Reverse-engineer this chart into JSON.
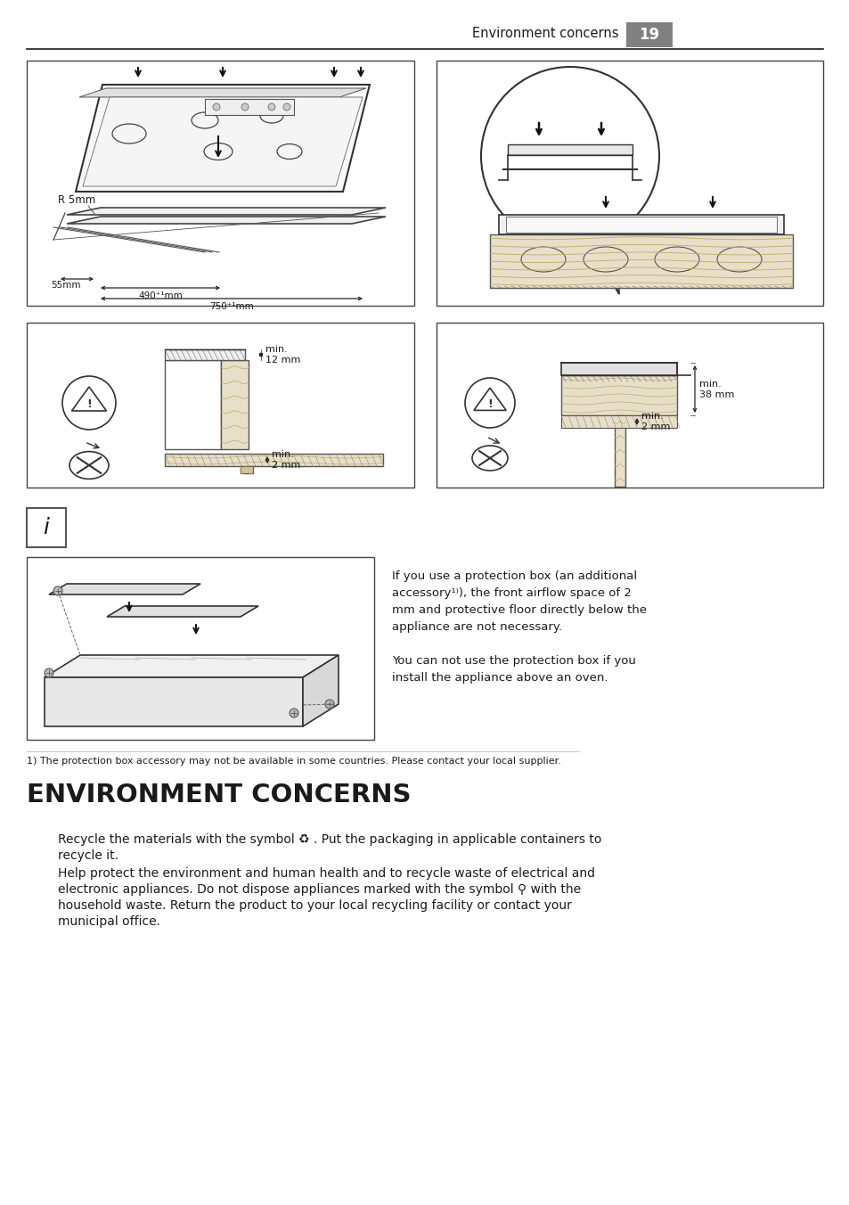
{
  "bg_color": "#ffffff",
  "header_text": "Environment concerns",
  "page_number": "19",
  "gray_box_color": "#808080",
  "dark": "#1a1a1a",
  "border_color": "#444444",
  "medium_gray": "#888888",
  "light_gray": "#cccccc",
  "section_title": "ENVIRONMENT CONCERNS",
  "footnote": "1) The protection box accessory may not be available in some countries. Please contact your local supplier.",
  "info_line1": "If you use a protection box (an additional",
  "info_line2": "accessory¹⁾), the front airflow space of 2",
  "info_line3": "mm and protective floor directly below the",
  "info_line4": "appliance are not necessary.",
  "info_line5": "You can not use the protection box if you",
  "info_line6": "install the appliance above an oven.",
  "para1_line1": "Recycle the materials with the symbol ♻ . Put the packaging in applicable containers to",
  "para1_line2": "recycle it.",
  "para2_line1": "Help protect the environment and human health and to recycle waste of electrical and",
  "para2_line2": "electronic appliances. Do not dispose appliances marked with the symbol ⚲ with the",
  "para2_line3": "household waste. Return the product to your local recycling facility or contact your",
  "para2_line4": "municipal office.",
  "dim_55mm": "55mm",
  "dim_490": "490⁺¹mm",
  "dim_750": "750⁺¹mm",
  "dim_r5": "R 5mm",
  "dim_min12": "min.\n12 mm",
  "dim_min2a": "min.\n2 mm",
  "dim_min38": "min.\n38 mm",
  "dim_min2b": "min.\n2 mm"
}
